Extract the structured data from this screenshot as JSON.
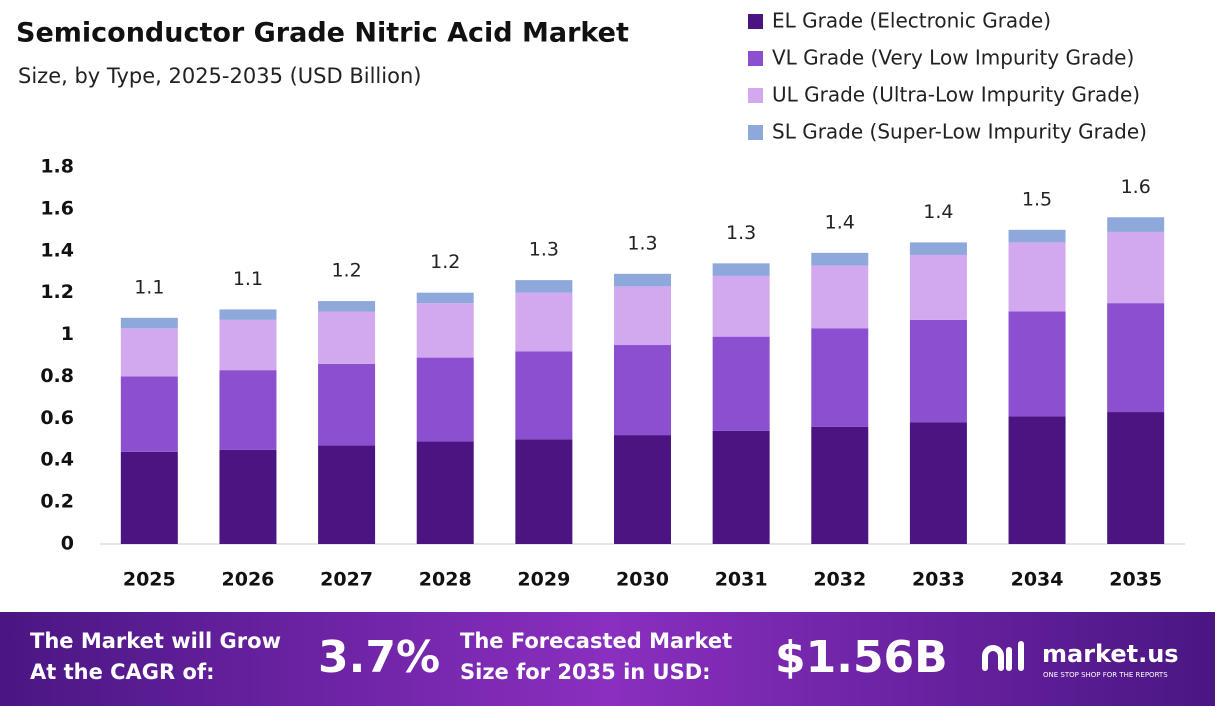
{
  "chart_data": {
    "type": "stacked_bar",
    "title": "Semiconductor Grade Nitric Acid Market",
    "subtitle": "Size, by  Type, 2025-2035 (USD Billion)",
    "categories": [
      "2025",
      "2026",
      "2027",
      "2028",
      "2029",
      "2030",
      "2031",
      "2032",
      "2033",
      "2034",
      "2035"
    ],
    "series": [
      {
        "name": "EL Grade (Electronic Grade)",
        "color": "#4b1480",
        "values": [
          0.44,
          0.45,
          0.47,
          0.49,
          0.5,
          0.52,
          0.54,
          0.56,
          0.58,
          0.61,
          0.63
        ]
      },
      {
        "name": "VL Grade (Very Low Impurity Grade)",
        "color": "#8b4fcf",
        "values": [
          0.36,
          0.38,
          0.39,
          0.4,
          0.42,
          0.43,
          0.45,
          0.47,
          0.49,
          0.5,
          0.52
        ]
      },
      {
        "name": "UL Grade (Ultra-Low Impurity Grade)",
        "color": "#d2a8ee",
        "values": [
          0.23,
          0.24,
          0.25,
          0.26,
          0.28,
          0.28,
          0.29,
          0.3,
          0.31,
          0.33,
          0.34
        ]
      },
      {
        "name": "SL Grade (Super-Low Impurity Grade)",
        "color": "#8fa8dc",
        "values": [
          0.05,
          0.05,
          0.05,
          0.05,
          0.06,
          0.06,
          0.06,
          0.06,
          0.06,
          0.06,
          0.07
        ]
      }
    ],
    "totals": [
      1.08,
      1.12,
      1.16,
      1.2,
      1.26,
      1.29,
      1.34,
      1.39,
      1.44,
      1.5,
      1.56
    ],
    "total_labels": [
      "1.1",
      "1.1",
      "1.2",
      "1.2",
      "1.3",
      "1.3",
      "1.3",
      "1.4",
      "1.4",
      "1.5",
      "1.6"
    ],
    "ylim": [
      0,
      1.8
    ],
    "yticks": [
      0,
      0.2,
      0.4,
      0.6,
      0.8,
      1,
      1.2,
      1.4,
      1.6,
      1.8
    ],
    "grid": false,
    "legend": "top-right"
  },
  "footer": {
    "cagr_text": [
      "The Market will Grow",
      "At the CAGR of:"
    ],
    "cagr_value": "3.7%",
    "forecast_text": [
      "The Forecasted Market",
      "Size for 2035 in USD:"
    ],
    "forecast_value": "$1.56B",
    "brand": "market.us",
    "tagline": "ONE STOP SHOP FOR THE REPORTS"
  }
}
